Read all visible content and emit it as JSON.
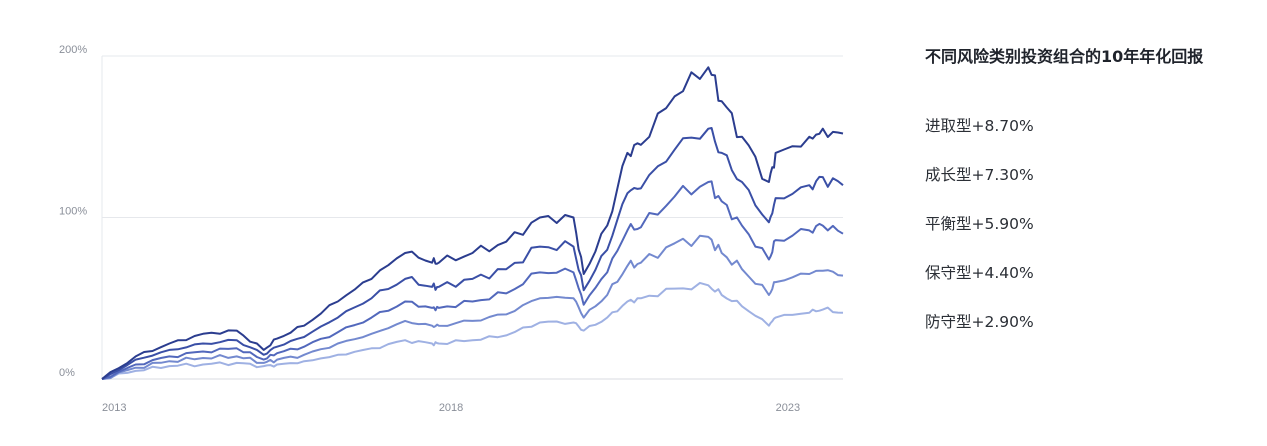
{
  "title": "不同风险类别投资组合的10年年化回报",
  "legend": [
    {
      "label": "进取型+8.70%",
      "color": "#2b3d8f"
    },
    {
      "label": "成长型+7.30%",
      "color": "#3a4fa6"
    },
    {
      "label": "平衡型+5.90%",
      "color": "#5268bc"
    },
    {
      "label": "保守型+4.40%",
      "color": "#7389cf"
    },
    {
      "label": "防守型+2.90%",
      "color": "#9fb1e3"
    }
  ],
  "chart_data": {
    "type": "line",
    "title": "不同风险类别投资组合的10年年化回报",
    "xlabel": "",
    "ylabel": "",
    "ylim": [
      0,
      200
    ],
    "xlim": [
      2013.0,
      2024.0
    ],
    "grid": true,
    "legend_position": "right",
    "y_ticks": [
      "0%",
      "100%",
      "200%"
    ],
    "x_ticks": [
      "2013",
      "2018",
      "2023"
    ],
    "x": [
      2013.0,
      2013.5,
      2014.0,
      2014.5,
      2015.0,
      2015.4,
      2015.6,
      2016.0,
      2016.5,
      2017.0,
      2017.5,
      2017.9,
      2018.0,
      2018.5,
      2019.0,
      2019.5,
      2020.0,
      2020.15,
      2020.5,
      2020.8,
      2021.0,
      2021.5,
      2022.0,
      2022.2,
      2022.5,
      2022.9,
      2023.0,
      2023.5,
      2023.7,
      2024.0
    ],
    "series": [
      {
        "name": "进取型+8.70%",
        "color": "#2b3d8f",
        "values": [
          0,
          14,
          22,
          28,
          30,
          18,
          25,
          33,
          48,
          62,
          78,
          72,
          72,
          78,
          85,
          100,
          100,
          65,
          95,
          140,
          145,
          175,
          193,
          172,
          150,
          122,
          140,
          150,
          155,
          152
        ]
      },
      {
        "name": "成长型+7.30%",
        "color": "#3a4fa6",
        "values": [
          0,
          12,
          18,
          22,
          24,
          15,
          20,
          26,
          38,
          50,
          62,
          57,
          57,
          62,
          68,
          82,
          82,
          55,
          80,
          115,
          118,
          142,
          155,
          140,
          122,
          97,
          112,
          120,
          125,
          120
        ]
      },
      {
        "name": "平衡型+5.90%",
        "color": "#5268bc",
        "values": [
          0,
          9,
          14,
          17,
          19,
          12,
          16,
          20,
          29,
          38,
          48,
          44,
          44,
          48,
          53,
          66,
          66,
          46,
          66,
          92,
          94,
          113,
          122,
          110,
          95,
          74,
          86,
          92,
          95,
          90
        ]
      },
      {
        "name": "保守型+4.40%",
        "color": "#7389cf",
        "values": [
          0,
          7,
          11,
          13,
          14,
          10,
          12,
          15,
          22,
          28,
          36,
          33,
          33,
          36,
          40,
          50,
          50,
          38,
          52,
          70,
          72,
          84,
          88,
          78,
          68,
          52,
          60,
          65,
          67,
          64
        ]
      },
      {
        "name": "防守型+2.90%",
        "color": "#9fb1e3",
        "values": [
          0,
          5,
          8,
          9,
          10,
          8,
          9,
          11,
          15,
          19,
          24,
          22,
          22,
          24,
          27,
          35,
          35,
          30,
          38,
          48,
          50,
          56,
          58,
          52,
          45,
          33,
          38,
          41,
          43,
          41
        ]
      }
    ]
  }
}
